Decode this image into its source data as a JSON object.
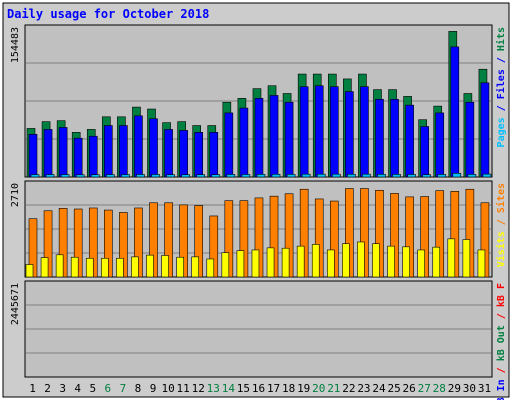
{
  "chart_data": {
    "type": "bar",
    "title": "Daily usage for October 2018",
    "categories": [
      "1",
      "2",
      "3",
      "4",
      "5",
      "6",
      "7",
      "8",
      "9",
      "10",
      "11",
      "12",
      "13",
      "14",
      "15",
      "16",
      "17",
      "18",
      "19",
      "20",
      "21",
      "22",
      "23",
      "24",
      "25",
      "26",
      "27",
      "28",
      "29",
      "30",
      "31"
    ],
    "weekend_days": [
      6,
      7,
      13,
      14,
      20,
      21,
      27,
      28
    ],
    "panels": [
      {
        "key": "hits_panel",
        "y_max_label": "154483",
        "y_max": 154483,
        "ylabel_parts": [
          {
            "text": "Pages",
            "color": "#00c0ff"
          },
          {
            "text": " / ",
            "color": "#0000ff"
          },
          {
            "text": "Files",
            "color": "#0000ff"
          },
          {
            "text": " / ",
            "color": "#0000ff"
          },
          {
            "text": "Hits",
            "color": "#008040"
          }
        ],
        "series": [
          {
            "name": "Hits",
            "color": "#008040",
            "values": [
              50000,
              57000,
              58000,
              46000,
              49000,
              62000,
              62000,
              72000,
              70000,
              56000,
              57000,
              53000,
              53000,
              77000,
              81000,
              91000,
              94000,
              86000,
              106000,
              106000,
              106000,
              101000,
              106000,
              90000,
              90000,
              83000,
              59000,
              73000,
              150000,
              86000,
              111000
            ]
          },
          {
            "name": "Files",
            "color": "#0000ff",
            "values": [
              44000,
              49000,
              51000,
              40000,
              42000,
              53000,
              53000,
              63000,
              60000,
              49000,
              48000,
              46000,
              46000,
              66000,
              71000,
              81000,
              84000,
              77000,
              93000,
              94000,
              93000,
              88000,
              93000,
              80000,
              80000,
              74000,
              52000,
              66000,
              134000,
              77000,
              97000
            ]
          },
          {
            "name": "Pages",
            "color": "#00c0ff",
            "values": [
              2500,
              2500,
              2500,
              2300,
              2400,
              2500,
              2500,
              2600,
              2600,
              2400,
              2400,
              2400,
              2400,
              2600,
              2600,
              2700,
              2800,
              2700,
              2900,
              2900,
              2900,
              2800,
              2900,
              2700,
              2700,
              2600,
              2400,
              2600,
              3800,
              2700,
              3000
            ]
          }
        ]
      },
      {
        "key": "sites_panel",
        "y_max_label": "2710",
        "y_max": 2710,
        "ylabel_parts": [
          {
            "text": "Visits",
            "color": "#ffff00"
          },
          {
            "text": " / ",
            "color": "#ff8000"
          },
          {
            "text": "Sites",
            "color": "#ff8000"
          }
        ],
        "series": [
          {
            "name": "Sites",
            "color": "#ff8000",
            "values": [
              1680,
              1910,
              1980,
              1960,
              1990,
              1930,
              1860,
              1990,
              2140,
              2140,
              2080,
              2060,
              1760,
              2200,
              2200,
              2280,
              2330,
              2400,
              2530,
              2250,
              2190,
              2550,
              2550,
              2500,
              2410,
              2310,
              2320,
              2490,
              2470,
              2530,
              2140
            ]
          },
          {
            "name": "Visits",
            "color": "#ffff00",
            "values": [
              360,
              560,
              640,
              570,
              540,
              540,
              540,
              580,
              630,
              620,
              570,
              580,
              520,
              700,
              760,
              780,
              840,
              830,
              890,
              940,
              780,
              960,
              1010,
              960,
              890,
              870,
              780,
              860,
              1100,
              1080,
              780
            ]
          }
        ]
      },
      {
        "key": "kbytes_panel",
        "y_max_label": "2445671",
        "y_max": 2445671,
        "ylabel_parts": [
          {
            "text": "kB In",
            "color": "#0000ff"
          },
          {
            "text": " / ",
            "color": "#ff0000"
          },
          {
            "text": "kB Out",
            "color": "#008040"
          },
          {
            "text": " / ",
            "color": "#ff0000"
          },
          {
            "text": "kB F",
            "color": "#ff0000"
          }
        ],
        "series": [
          {
            "name": "kB F",
            "color": "#ff0000",
            "values": [
              1660,
              1590,
              1840,
              1300,
              1430,
              1480,
              1530,
              1850,
              1560,
              1410,
              1540,
              1370,
              1330,
              1620,
              1650,
              1920,
              2130,
              1890,
              2170,
              2170,
              2080,
              2260,
              2210,
              1750,
              1760,
              1600,
              1610,
              1730,
              2680,
              2050,
              2160
            ]
          }
        ]
      }
    ]
  }
}
